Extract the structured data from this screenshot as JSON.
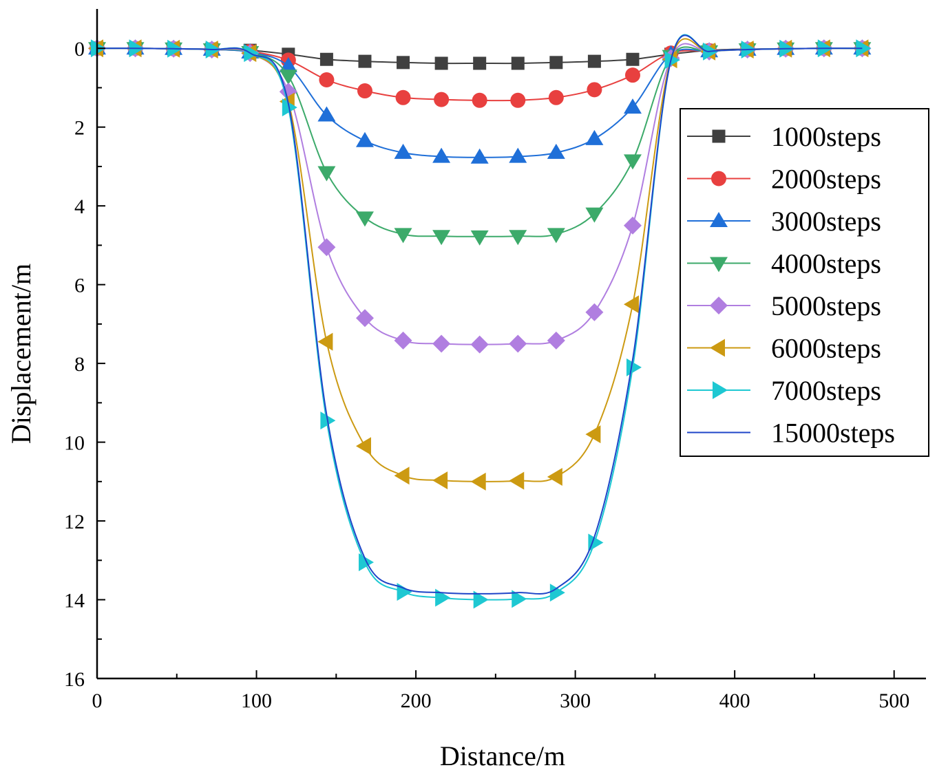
{
  "chart_data": {
    "type": "line",
    "title": "",
    "xlabel": "Distance/m",
    "ylabel": "Displacement/m",
    "xlim": [
      0,
      520
    ],
    "ylim": [
      -1,
      16
    ],
    "y_inverted": true,
    "x_ticks": [
      0,
      100,
      200,
      300,
      400,
      500
    ],
    "x_tick_labels": [
      "0",
      "100",
      "200",
      "300",
      "400",
      "500"
    ],
    "y_ticks": [
      0,
      2,
      4,
      6,
      8,
      10,
      12,
      14,
      16
    ],
    "y_tick_labels": [
      "0",
      "2",
      "4",
      "6",
      "8",
      "10",
      "12",
      "14",
      "16"
    ],
    "grid": false,
    "legend_position": "right",
    "x": [
      0,
      24,
      48,
      72,
      96,
      120,
      144,
      168,
      192,
      216,
      240,
      264,
      288,
      312,
      336,
      360,
      384,
      408,
      432,
      456,
      480
    ],
    "series": [
      {
        "name": "1000steps",
        "color": "#404040",
        "marker": "square",
        "values": [
          0,
          0,
          0.01,
          0.02,
          0.05,
          0.15,
          0.28,
          0.33,
          0.36,
          0.38,
          0.38,
          0.38,
          0.36,
          0.33,
          0.28,
          0.15,
          0.05,
          0.02,
          0.01,
          0,
          0
        ]
      },
      {
        "name": "2000steps",
        "color": "#e8403f",
        "marker": "circle",
        "values": [
          0,
          0,
          0.01,
          0.03,
          0.08,
          0.3,
          0.8,
          1.08,
          1.25,
          1.3,
          1.32,
          1.32,
          1.25,
          1.05,
          0.68,
          0.12,
          0.06,
          0.03,
          0.01,
          0,
          0
        ]
      },
      {
        "name": "3000steps",
        "color": "#1f6fd8",
        "marker": "triangle-up",
        "values": [
          0,
          0,
          0.01,
          0.03,
          0.1,
          0.45,
          1.7,
          2.35,
          2.65,
          2.75,
          2.77,
          2.75,
          2.65,
          2.3,
          1.5,
          0.15,
          0.07,
          0.03,
          0.01,
          0,
          0
        ]
      },
      {
        "name": "4000steps",
        "color": "#3caa6a",
        "marker": "triangle-down",
        "values": [
          0,
          0,
          0.01,
          0.03,
          0.1,
          0.7,
          3.15,
          4.3,
          4.72,
          4.77,
          4.78,
          4.77,
          4.72,
          4.2,
          2.85,
          0.2,
          0.08,
          0.03,
          0.01,
          0,
          0
        ]
      },
      {
        "name": "5000steps",
        "color": "#b07ee0",
        "marker": "diamond",
        "values": [
          0,
          0,
          0.01,
          0.03,
          0.12,
          1.1,
          5.05,
          6.85,
          7.42,
          7.5,
          7.52,
          7.5,
          7.42,
          6.7,
          4.5,
          0.25,
          0.08,
          0.03,
          0.01,
          0,
          0
        ]
      },
      {
        "name": "6000steps",
        "color": "#cc9a12",
        "marker": "triangle-left",
        "values": [
          0,
          0,
          0.01,
          0.03,
          0.12,
          1.35,
          7.45,
          10.1,
          10.85,
          10.97,
          11.0,
          10.98,
          10.88,
          9.8,
          6.5,
          0.28,
          0.08,
          0.03,
          0.01,
          0,
          0
        ]
      },
      {
        "name": "7000steps",
        "color": "#1ec8d2",
        "marker": "triangle-right",
        "values": [
          0,
          0,
          0.01,
          0.03,
          0.12,
          1.5,
          9.45,
          13.05,
          13.8,
          13.95,
          14.0,
          13.98,
          13.82,
          12.55,
          8.1,
          0.3,
          0.08,
          0.03,
          0.01,
          0,
          0
        ]
      },
      {
        "name": "15000steps",
        "color": "#1f45c8",
        "marker": "none",
        "values": [
          0,
          0,
          0.01,
          0.03,
          0.12,
          1.4,
          9.3,
          12.95,
          13.7,
          13.82,
          13.85,
          13.82,
          13.72,
          12.4,
          7.9,
          0.3,
          0.08,
          0.03,
          0.01,
          0,
          0
        ]
      }
    ]
  }
}
